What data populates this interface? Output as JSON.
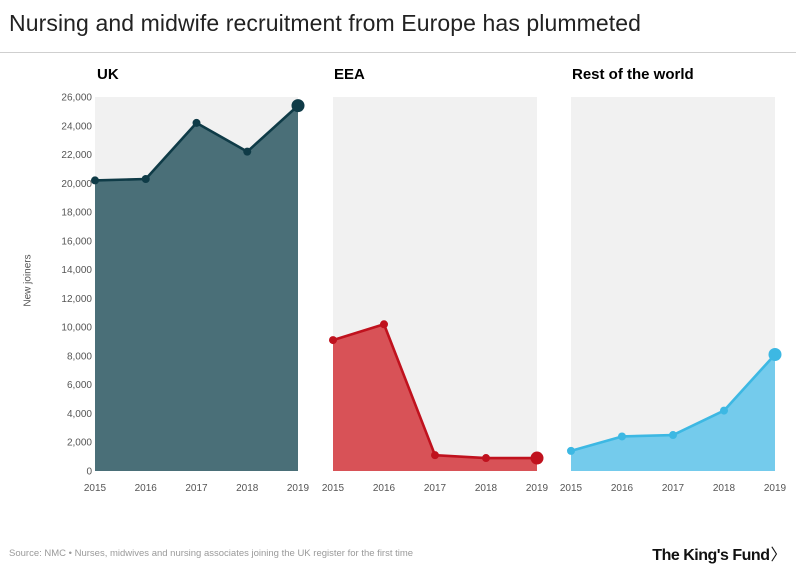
{
  "title": "Nursing and midwife recruitment from Europe has plummeted",
  "ylabel": "New joiners",
  "source": "Source: NMC • Nurses, midwives and nursing associates joining the UK register for the first time",
  "brand": "The King's Fund",
  "brand_icon": "chevron-right-icon",
  "chart_data": {
    "type": "area",
    "categories": [
      "2015",
      "2016",
      "2017",
      "2018",
      "2019"
    ],
    "ylim": [
      0,
      26000
    ],
    "yticks": [
      "0",
      "2,000",
      "4,000",
      "6,000",
      "8,000",
      "10,000",
      "12,000",
      "14,000",
      "16,000",
      "18,000",
      "20,000",
      "22,000",
      "24,000",
      "26,000"
    ],
    "grid": false,
    "series": [
      {
        "name": "UK",
        "values": [
          20200,
          20300,
          24200,
          22200,
          25400
        ],
        "line": "#0f3b47",
        "fill": "#4a6f78",
        "title_color": "#0f3b47"
      },
      {
        "name": "EEA",
        "values": [
          9100,
          10200,
          1100,
          900,
          900
        ],
        "line": "#c0121e",
        "fill": "#d85257",
        "title_color": "#c0121e"
      },
      {
        "name": "Rest of the world",
        "values": [
          1400,
          2400,
          2500,
          4200,
          8100
        ],
        "line": "#3db8e3",
        "fill": "#74cbec",
        "title_color": "#3db8e3"
      }
    ]
  }
}
